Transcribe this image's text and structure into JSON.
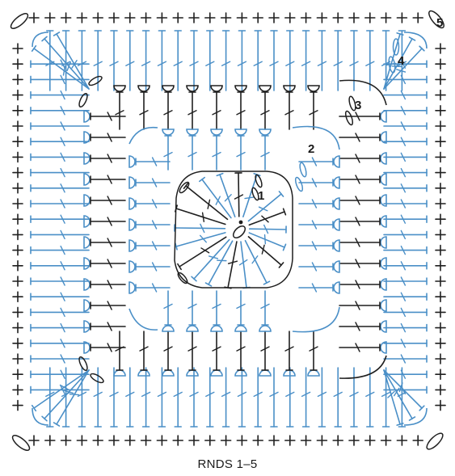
{
  "diagram": {
    "caption": "RNDS 1–5",
    "round_labels": [
      "1",
      "2",
      "3",
      "4",
      "5"
    ],
    "colors": {
      "blue": "#4a8fc7",
      "dark": "#1f1f1f"
    },
    "icons": [
      "magic-ring-icon",
      "round-start-dot-icon"
    ]
  }
}
